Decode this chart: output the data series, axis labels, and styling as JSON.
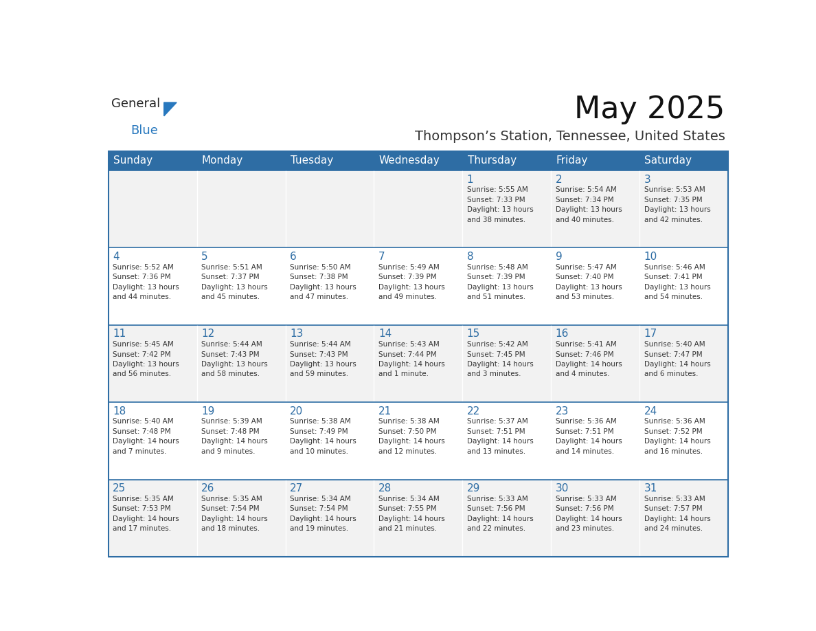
{
  "title": "May 2025",
  "subtitle": "Thompson’s Station, Tennessee, United States",
  "days_of_week": [
    "Sunday",
    "Monday",
    "Tuesday",
    "Wednesday",
    "Thursday",
    "Friday",
    "Saturday"
  ],
  "header_bg": "#2E6DA4",
  "header_text_color": "#FFFFFF",
  "row_bg_odd": "#F2F2F2",
  "row_bg_even": "#FFFFFF",
  "cell_text_color": "#333333",
  "day_num_color": "#2E6DA4",
  "inner_line_color": "#2E6DA4",
  "calendar": [
    [
      {
        "day": 0,
        "text": ""
      },
      {
        "day": 0,
        "text": ""
      },
      {
        "day": 0,
        "text": ""
      },
      {
        "day": 0,
        "text": ""
      },
      {
        "day": 1,
        "text": "Sunrise: 5:55 AM\nSunset: 7:33 PM\nDaylight: 13 hours\nand 38 minutes."
      },
      {
        "day": 2,
        "text": "Sunrise: 5:54 AM\nSunset: 7:34 PM\nDaylight: 13 hours\nand 40 minutes."
      },
      {
        "day": 3,
        "text": "Sunrise: 5:53 AM\nSunset: 7:35 PM\nDaylight: 13 hours\nand 42 minutes."
      }
    ],
    [
      {
        "day": 4,
        "text": "Sunrise: 5:52 AM\nSunset: 7:36 PM\nDaylight: 13 hours\nand 44 minutes."
      },
      {
        "day": 5,
        "text": "Sunrise: 5:51 AM\nSunset: 7:37 PM\nDaylight: 13 hours\nand 45 minutes."
      },
      {
        "day": 6,
        "text": "Sunrise: 5:50 AM\nSunset: 7:38 PM\nDaylight: 13 hours\nand 47 minutes."
      },
      {
        "day": 7,
        "text": "Sunrise: 5:49 AM\nSunset: 7:39 PM\nDaylight: 13 hours\nand 49 minutes."
      },
      {
        "day": 8,
        "text": "Sunrise: 5:48 AM\nSunset: 7:39 PM\nDaylight: 13 hours\nand 51 minutes."
      },
      {
        "day": 9,
        "text": "Sunrise: 5:47 AM\nSunset: 7:40 PM\nDaylight: 13 hours\nand 53 minutes."
      },
      {
        "day": 10,
        "text": "Sunrise: 5:46 AM\nSunset: 7:41 PM\nDaylight: 13 hours\nand 54 minutes."
      }
    ],
    [
      {
        "day": 11,
        "text": "Sunrise: 5:45 AM\nSunset: 7:42 PM\nDaylight: 13 hours\nand 56 minutes."
      },
      {
        "day": 12,
        "text": "Sunrise: 5:44 AM\nSunset: 7:43 PM\nDaylight: 13 hours\nand 58 minutes."
      },
      {
        "day": 13,
        "text": "Sunrise: 5:44 AM\nSunset: 7:43 PM\nDaylight: 13 hours\nand 59 minutes."
      },
      {
        "day": 14,
        "text": "Sunrise: 5:43 AM\nSunset: 7:44 PM\nDaylight: 14 hours\nand 1 minute."
      },
      {
        "day": 15,
        "text": "Sunrise: 5:42 AM\nSunset: 7:45 PM\nDaylight: 14 hours\nand 3 minutes."
      },
      {
        "day": 16,
        "text": "Sunrise: 5:41 AM\nSunset: 7:46 PM\nDaylight: 14 hours\nand 4 minutes."
      },
      {
        "day": 17,
        "text": "Sunrise: 5:40 AM\nSunset: 7:47 PM\nDaylight: 14 hours\nand 6 minutes."
      }
    ],
    [
      {
        "day": 18,
        "text": "Sunrise: 5:40 AM\nSunset: 7:48 PM\nDaylight: 14 hours\nand 7 minutes."
      },
      {
        "day": 19,
        "text": "Sunrise: 5:39 AM\nSunset: 7:48 PM\nDaylight: 14 hours\nand 9 minutes."
      },
      {
        "day": 20,
        "text": "Sunrise: 5:38 AM\nSunset: 7:49 PM\nDaylight: 14 hours\nand 10 minutes."
      },
      {
        "day": 21,
        "text": "Sunrise: 5:38 AM\nSunset: 7:50 PM\nDaylight: 14 hours\nand 12 minutes."
      },
      {
        "day": 22,
        "text": "Sunrise: 5:37 AM\nSunset: 7:51 PM\nDaylight: 14 hours\nand 13 minutes."
      },
      {
        "day": 23,
        "text": "Sunrise: 5:36 AM\nSunset: 7:51 PM\nDaylight: 14 hours\nand 14 minutes."
      },
      {
        "day": 24,
        "text": "Sunrise: 5:36 AM\nSunset: 7:52 PM\nDaylight: 14 hours\nand 16 minutes."
      }
    ],
    [
      {
        "day": 25,
        "text": "Sunrise: 5:35 AM\nSunset: 7:53 PM\nDaylight: 14 hours\nand 17 minutes."
      },
      {
        "day": 26,
        "text": "Sunrise: 5:35 AM\nSunset: 7:54 PM\nDaylight: 14 hours\nand 18 minutes."
      },
      {
        "day": 27,
        "text": "Sunrise: 5:34 AM\nSunset: 7:54 PM\nDaylight: 14 hours\nand 19 minutes."
      },
      {
        "day": 28,
        "text": "Sunrise: 5:34 AM\nSunset: 7:55 PM\nDaylight: 14 hours\nand 21 minutes."
      },
      {
        "day": 29,
        "text": "Sunrise: 5:33 AM\nSunset: 7:56 PM\nDaylight: 14 hours\nand 22 minutes."
      },
      {
        "day": 30,
        "text": "Sunrise: 5:33 AM\nSunset: 7:56 PM\nDaylight: 14 hours\nand 23 minutes."
      },
      {
        "day": 31,
        "text": "Sunrise: 5:33 AM\nSunset: 7:57 PM\nDaylight: 14 hours\nand 24 minutes."
      }
    ]
  ],
  "logo_text1": "General",
  "logo_text2": "Blue",
  "logo_color1": "#222222",
  "logo_color2": "#2878BE",
  "logo_triangle_color": "#2878BE"
}
